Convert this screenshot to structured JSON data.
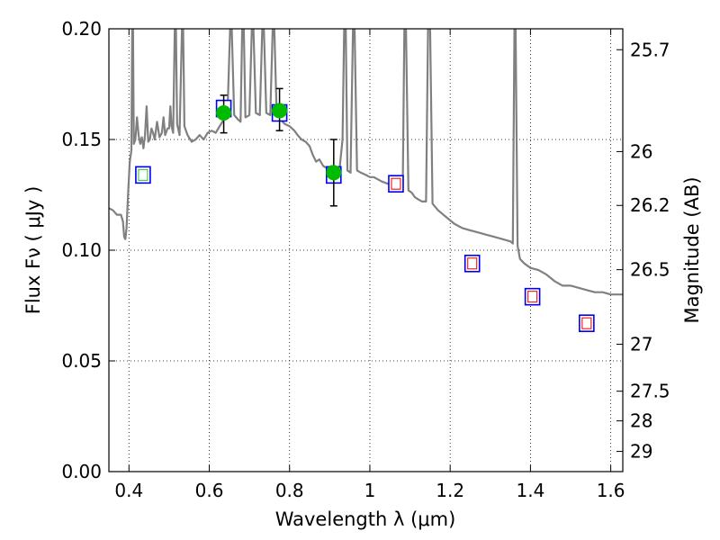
{
  "chart_data": {
    "type": "scatter",
    "title": "",
    "xlabel": "Wavelength  λ (μm)",
    "ylabel": "Flux  Fν  ( μJy )",
    "y2label": "Magnitude (AB)",
    "xlim": [
      0.35,
      1.63
    ],
    "ylim": [
      0.0,
      0.2
    ],
    "xticks": [
      0.4,
      0.6,
      0.8,
      1.0,
      1.2,
      1.4,
      1.6
    ],
    "xtick_labels": [
      "0.4",
      "0.6",
      "0.8",
      "1",
      "1.2",
      "1.4",
      "1.6"
    ],
    "yticks": [
      0.0,
      0.05,
      0.1,
      0.15,
      0.2
    ],
    "ytick_labels": [
      "0.00",
      "0.05",
      "0.10",
      "0.15",
      "0.20"
    ],
    "y2ticks": [
      {
        "mag": 25.7,
        "label": "25.7"
      },
      {
        "mag": 26.0,
        "label": "26"
      },
      {
        "mag": 26.2,
        "label": "26.2"
      },
      {
        "mag": 26.5,
        "label": "26.5"
      },
      {
        "mag": 27.0,
        "label": "27"
      },
      {
        "mag": 27.5,
        "label": "27.5"
      },
      {
        "mag": 28.0,
        "label": "28"
      },
      {
        "mag": 29.0,
        "label": "29"
      }
    ],
    "grid": true,
    "colors": {
      "model": "#808080",
      "observed": "#00bb00",
      "model_box": "#0000ee",
      "predicted": "#ee1111",
      "green_inner": "#33cc33",
      "errorbar": "#000000"
    },
    "series": [
      {
        "kind": "model_spectrum",
        "points": [
          [
            0.35,
            0.119
          ],
          [
            0.36,
            0.118
          ],
          [
            0.37,
            0.116
          ],
          [
            0.38,
            0.116
          ],
          [
            0.385,
            0.113
          ],
          [
            0.388,
            0.106
          ],
          [
            0.391,
            0.105
          ],
          [
            0.394,
            0.11
          ],
          [
            0.398,
            0.126
          ],
          [
            0.402,
            0.14
          ],
          [
            0.406,
            0.145
          ],
          [
            0.408,
            0.2
          ],
          [
            0.41,
            0.2
          ],
          [
            0.412,
            0.148
          ],
          [
            0.416,
            0.15
          ],
          [
            0.42,
            0.16
          ],
          [
            0.424,
            0.152
          ],
          [
            0.428,
            0.148
          ],
          [
            0.432,
            0.151
          ],
          [
            0.436,
            0.146
          ],
          [
            0.44,
            0.152
          ],
          [
            0.444,
            0.165
          ],
          [
            0.448,
            0.149
          ],
          [
            0.452,
            0.15
          ],
          [
            0.456,
            0.155
          ],
          [
            0.46,
            0.153
          ],
          [
            0.464,
            0.15
          ],
          [
            0.47,
            0.158
          ],
          [
            0.476,
            0.151
          ],
          [
            0.482,
            0.153
          ],
          [
            0.486,
            0.16
          ],
          [
            0.49,
            0.152
          ],
          [
            0.496,
            0.155
          ],
          [
            0.5,
            0.155
          ],
          [
            0.503,
            0.165
          ],
          [
            0.506,
            0.156
          ],
          [
            0.51,
            0.153
          ],
          [
            0.514,
            0.2
          ],
          [
            0.517,
            0.2
          ],
          [
            0.52,
            0.157
          ],
          [
            0.526,
            0.152
          ],
          [
            0.532,
            0.2
          ],
          [
            0.535,
            0.2
          ],
          [
            0.538,
            0.156
          ],
          [
            0.546,
            0.152
          ],
          [
            0.556,
            0.149
          ],
          [
            0.566,
            0.15
          ],
          [
            0.576,
            0.152
          ],
          [
            0.586,
            0.15
          ],
          [
            0.596,
            0.153
          ],
          [
            0.606,
            0.154
          ],
          [
            0.616,
            0.153
          ],
          [
            0.626,
            0.156
          ],
          [
            0.636,
            0.159
          ],
          [
            0.645,
            0.16
          ],
          [
            0.652,
            0.2
          ],
          [
            0.656,
            0.2
          ],
          [
            0.662,
            0.161
          ],
          [
            0.672,
            0.159
          ],
          [
            0.678,
            0.158
          ],
          [
            0.682,
            0.2
          ],
          [
            0.686,
            0.2
          ],
          [
            0.69,
            0.16
          ],
          [
            0.7,
            0.161
          ],
          [
            0.706,
            0.2
          ],
          [
            0.71,
            0.2
          ],
          [
            0.716,
            0.162
          ],
          [
            0.726,
            0.161
          ],
          [
            0.732,
            0.2
          ],
          [
            0.736,
            0.2
          ],
          [
            0.742,
            0.162
          ],
          [
            0.752,
            0.161
          ],
          [
            0.758,
            0.2
          ],
          [
            0.762,
            0.2
          ],
          [
            0.768,
            0.16
          ],
          [
            0.778,
            0.159
          ],
          [
            0.788,
            0.157
          ],
          [
            0.8,
            0.156
          ],
          [
            0.812,
            0.154
          ],
          [
            0.82,
            0.152
          ],
          [
            0.83,
            0.15
          ],
          [
            0.84,
            0.149
          ],
          [
            0.85,
            0.147
          ],
          [
            0.858,
            0.143
          ],
          [
            0.866,
            0.14
          ],
          [
            0.874,
            0.141
          ],
          [
            0.884,
            0.138
          ],
          [
            0.894,
            0.137
          ],
          [
            0.904,
            0.138
          ],
          [
            0.914,
            0.137
          ],
          [
            0.924,
            0.136
          ],
          [
            0.932,
            0.15
          ],
          [
            0.936,
            0.2
          ],
          [
            0.94,
            0.2
          ],
          [
            0.944,
            0.136
          ],
          [
            0.952,
            0.135
          ],
          [
            0.958,
            0.2
          ],
          [
            0.962,
            0.2
          ],
          [
            0.968,
            0.136
          ],
          [
            0.978,
            0.135
          ],
          [
            0.99,
            0.134
          ],
          [
            1.0,
            0.133
          ],
          [
            1.01,
            0.133
          ],
          [
            1.02,
            0.132
          ],
          [
            1.03,
            0.131
          ],
          [
            1.045,
            0.13
          ],
          [
            1.06,
            0.13
          ],
          [
            1.075,
            0.129
          ],
          [
            1.082,
            0.128
          ],
          [
            1.086,
            0.2
          ],
          [
            1.09,
            0.2
          ],
          [
            1.096,
            0.127
          ],
          [
            1.104,
            0.126
          ],
          [
            1.112,
            0.124
          ],
          [
            1.12,
            0.123
          ],
          [
            1.13,
            0.122
          ],
          [
            1.14,
            0.122
          ],
          [
            1.145,
            0.2
          ],
          [
            1.15,
            0.2
          ],
          [
            1.156,
            0.121
          ],
          [
            1.17,
            0.118
          ],
          [
            1.19,
            0.115
          ],
          [
            1.21,
            0.112
          ],
          [
            1.23,
            0.11
          ],
          [
            1.25,
            0.109
          ],
          [
            1.27,
            0.108
          ],
          [
            1.29,
            0.107
          ],
          [
            1.31,
            0.106
          ],
          [
            1.33,
            0.105
          ],
          [
            1.35,
            0.104
          ],
          [
            1.356,
            0.103
          ],
          [
            1.36,
            0.2
          ],
          [
            1.363,
            0.2
          ],
          [
            1.368,
            0.102
          ],
          [
            1.374,
            0.096
          ],
          [
            1.385,
            0.094
          ],
          [
            1.4,
            0.092
          ],
          [
            1.42,
            0.091
          ],
          [
            1.44,
            0.089
          ],
          [
            1.46,
            0.086
          ],
          [
            1.48,
            0.084
          ],
          [
            1.5,
            0.084
          ],
          [
            1.52,
            0.083
          ],
          [
            1.54,
            0.082
          ],
          [
            1.56,
            0.081
          ],
          [
            1.58,
            0.081
          ],
          [
            1.6,
            0.08
          ],
          [
            1.63,
            0.08
          ]
        ]
      },
      {
        "kind": "observed_flux",
        "points": [
          {
            "x": 0.636,
            "y": 0.162,
            "yerr_low": 0.153,
            "yerr_high": 0.17
          },
          {
            "x": 0.775,
            "y": 0.163,
            "yerr_low": 0.154,
            "yerr_high": 0.173
          },
          {
            "x": 0.91,
            "y": 0.135,
            "yerr_low": 0.12,
            "yerr_high": 0.15
          }
        ]
      },
      {
        "kind": "model_photometry",
        "points": [
          {
            "x": 0.435,
            "y": 0.134,
            "inner": "green"
          },
          {
            "x": 0.636,
            "y": 0.164,
            "inner": "none"
          },
          {
            "x": 0.775,
            "y": 0.162,
            "inner": "none"
          },
          {
            "x": 0.91,
            "y": 0.134,
            "inner": "none"
          },
          {
            "x": 1.065,
            "y": 0.13,
            "inner": "red"
          },
          {
            "x": 1.255,
            "y": 0.094,
            "inner": "red"
          },
          {
            "x": 1.405,
            "y": 0.079,
            "inner": "red"
          },
          {
            "x": 1.54,
            "y": 0.067,
            "inner": "red"
          }
        ]
      }
    ]
  }
}
